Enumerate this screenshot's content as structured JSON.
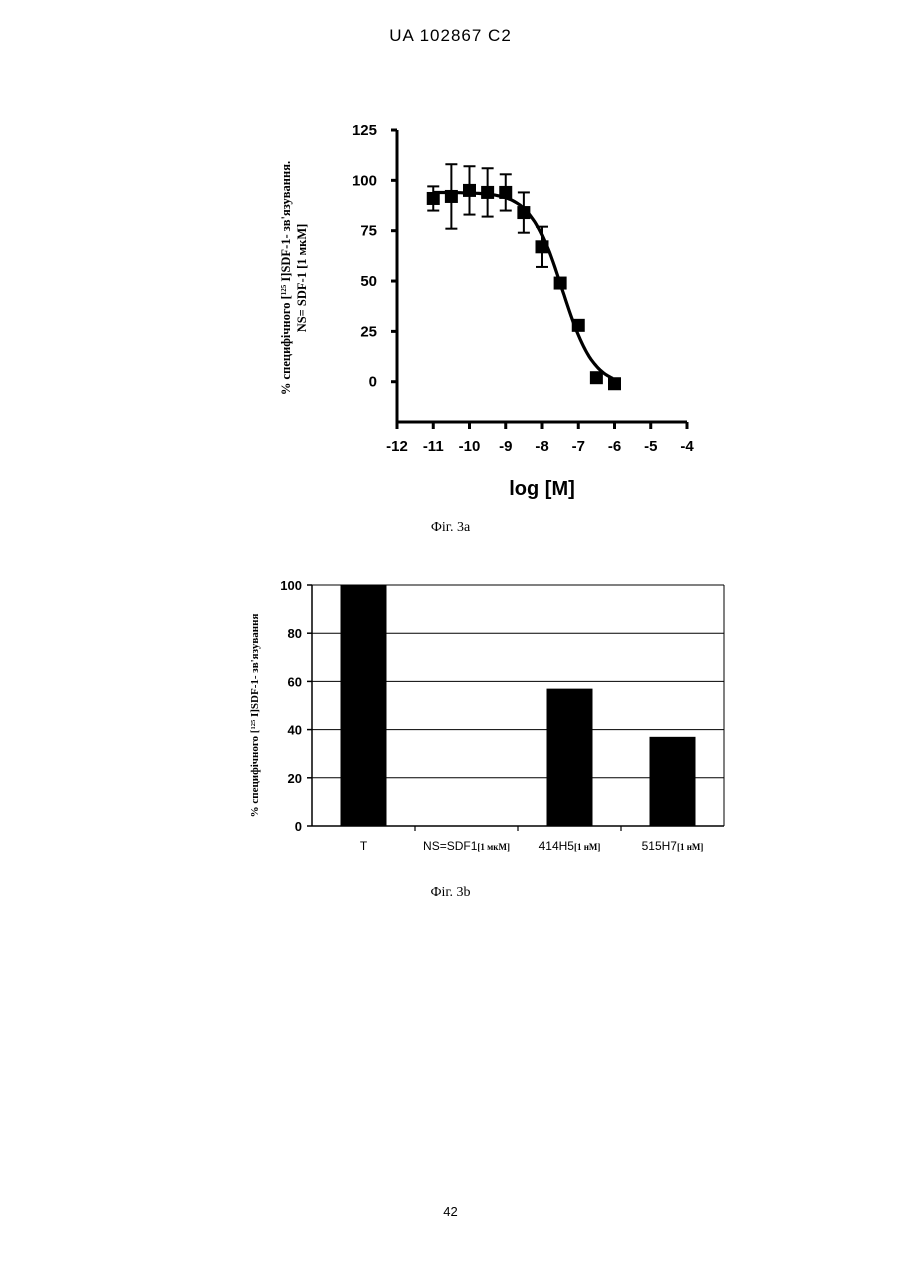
{
  "header": {
    "text": "UA   102867   C2"
  },
  "captions": {
    "fig_a": "Фіг. 3а",
    "fig_b": "Фіг. 3b"
  },
  "page_number": "42",
  "chart_data": [
    {
      "type": "scatter",
      "title": "",
      "xlabel": "log [M]",
      "ylabel_line1": "% специфічного [",
      "ylabel_sup": "125",
      "ylabel_line1_end": " I]SDF-1- зв'язування.",
      "ylabel_line2": "NS= SDF-1 [1 мкМ]",
      "xlim": [
        -12,
        -4
      ],
      "ylim": [
        -20,
        125
      ],
      "xticks": [
        -12,
        -11,
        -10,
        -9,
        -8,
        -7,
        -6,
        -5,
        -4
      ],
      "xtick_labels": [
        "-12",
        "-11",
        "-10",
        "-9",
        "-8",
        "-7",
        "-6",
        "-5",
        "-4"
      ],
      "yticks": [
        0,
        25,
        50,
        75,
        100,
        125
      ],
      "ytick_labels": [
        "0",
        "25",
        "50",
        "75",
        "100",
        "125"
      ],
      "grid": false,
      "points": [
        {
          "x": -11.0,
          "y": 91,
          "err": 6
        },
        {
          "x": -10.5,
          "y": 92,
          "err": 16
        },
        {
          "x": -10.0,
          "y": 95,
          "err": 12
        },
        {
          "x": -9.5,
          "y": 94,
          "err": 12
        },
        {
          "x": -9.0,
          "y": 94,
          "err": 9
        },
        {
          "x": -8.5,
          "y": 84,
          "err": 10
        },
        {
          "x": -8.0,
          "y": 67,
          "err": 10
        },
        {
          "x": -7.5,
          "y": 49,
          "err": 0
        },
        {
          "x": -7.0,
          "y": 28,
          "err": 0
        },
        {
          "x": -6.5,
          "y": 2,
          "err": 0
        },
        {
          "x": -6.0,
          "y": -1,
          "err": 0
        }
      ],
      "fit": {
        "top": 94,
        "bottom": -2,
        "log_ic50": -7.45,
        "hill": 1.0
      }
    },
    {
      "type": "bar",
      "title": "",
      "ylabel_line1": "% специфічного [",
      "ylabel_sup": "125",
      "ylabel_line1_end": " I]SDF-1- зв'язування",
      "ylim": [
        0,
        100
      ],
      "yticks": [
        0,
        20,
        40,
        60,
        80,
        100
      ],
      "ytick_labels": [
        "0",
        "20",
        "40",
        "60",
        "80",
        "100"
      ],
      "grid": true,
      "categories": [
        {
          "main": "T",
          "sub": ""
        },
        {
          "main": "NS=SDF1",
          "sub": "[1 мкМ]"
        },
        {
          "main": "414H5",
          "sub": "[1 нМ]"
        },
        {
          "main": "515H7",
          "sub": "[1 нМ]"
        }
      ],
      "values": [
        100,
        0,
        57,
        37
      ],
      "bar_color": "#000000"
    }
  ]
}
